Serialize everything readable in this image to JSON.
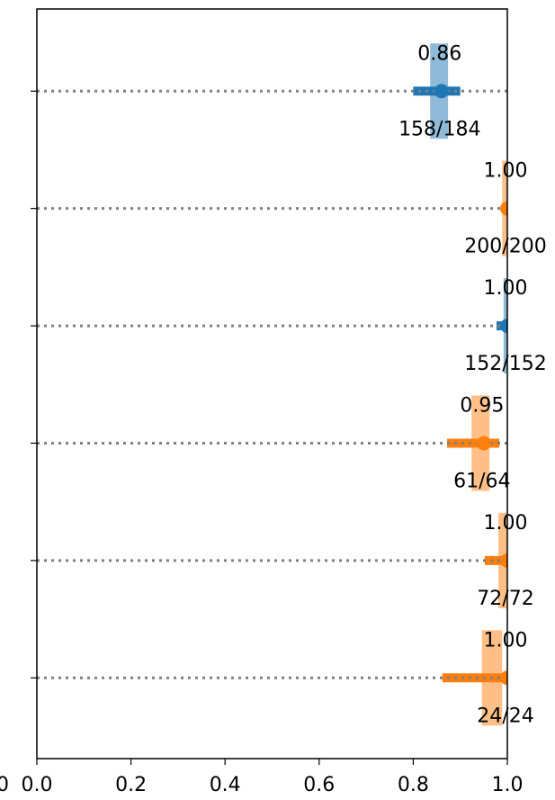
{
  "chart_data": {
    "type": "dot_errorbar",
    "categories": [
      null,
      null,
      null,
      null,
      null,
      null
    ],
    "values": [
      0.86,
      1.0,
      1.0,
      0.95,
      1.0,
      1.0
    ],
    "value_labels": [
      "0.86",
      "1.00",
      "1.00",
      "0.95",
      "1.00",
      "1.00"
    ],
    "lower": [
      0.8,
      0.99,
      0.977,
      0.872,
      0.952,
      0.862
    ],
    "upper": [
      0.9,
      1.0,
      1.0,
      0.983,
      1.0,
      1.0
    ],
    "band_lower": [
      0.836,
      0.989,
      0.992,
      0.924,
      0.981,
      0.946
    ],
    "band_upper": [
      0.874,
      1.0,
      1.0,
      0.962,
      1.0,
      0.989
    ],
    "colors": [
      "#1f77b4",
      "#ff7f0e",
      "#1f77b4",
      "#ff7f0e",
      "#ff7f0e",
      "#ff7f0e"
    ],
    "band_colors": [
      "#8fbbd9",
      "#ffbf86",
      "#8fbbd9",
      "#ffbf86",
      "#ffbf86",
      "#ffbf86"
    ],
    "annotations": [
      "158/184",
      "200/200",
      "152/152",
      "61/64",
      "72/72",
      "24/24"
    ],
    "xlim": [
      0,
      1
    ],
    "xticks": [
      {
        "value": 0,
        "label": "0.0"
      },
      0.2,
      0.4,
      0.6,
      0.8,
      {
        "value": 1,
        "label": "1.0"
      }
    ],
    "edge_text": "0",
    "grid": true
  }
}
